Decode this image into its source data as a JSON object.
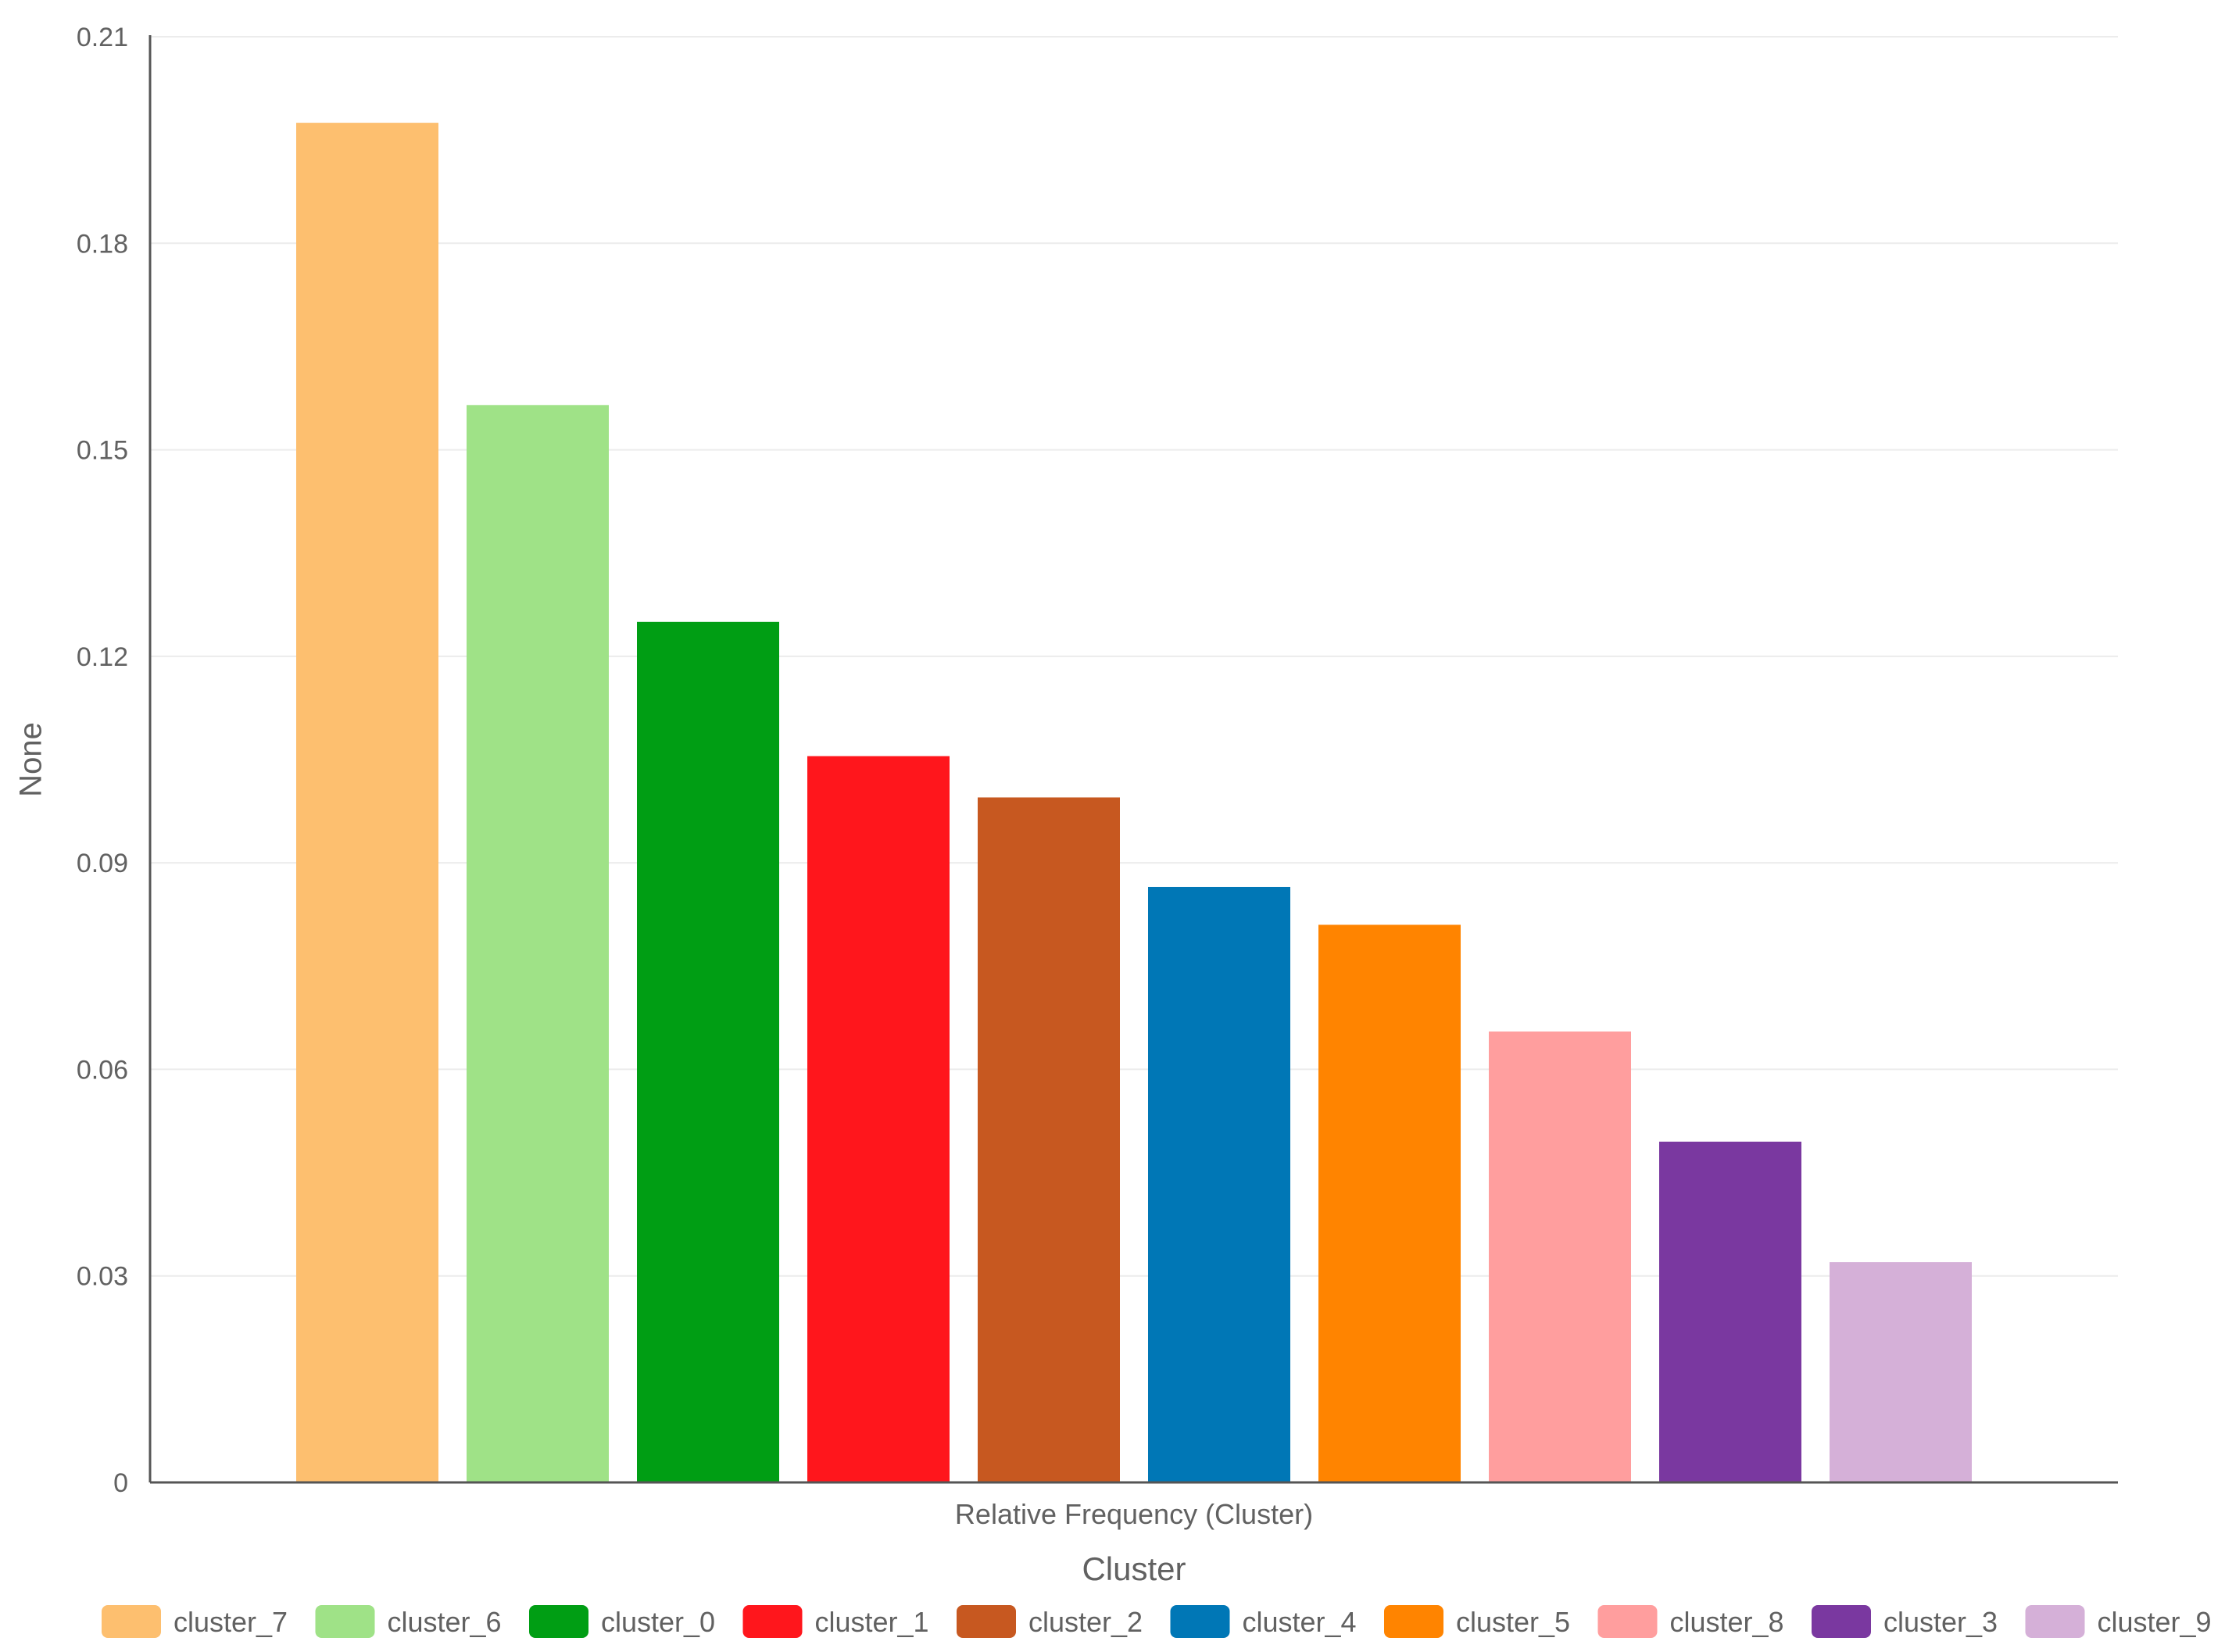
{
  "chart_data": {
    "type": "bar",
    "ylabel": "None",
    "xlabel": "Cluster",
    "x_category_label": "Relative Frequency (Cluster)",
    "ylim": [
      0,
      0.21
    ],
    "yticks": [
      "0",
      "0.03",
      "0.06",
      "0.09",
      "0.12",
      "0.15",
      "0.18",
      "0.21"
    ],
    "grid": true,
    "legend_position": "bottom",
    "categories": [
      "cluster_7",
      "cluster_6",
      "cluster_0",
      "cluster_1",
      "cluster_2",
      "cluster_4",
      "cluster_5",
      "cluster_8",
      "cluster_3",
      "cluster_9"
    ],
    "values": [
      0.1975,
      0.1565,
      0.125,
      0.1055,
      0.0995,
      0.0865,
      0.081,
      0.0655,
      0.0495,
      0.032
    ],
    "colors": [
      "#FDBF6F",
      "#9FE287",
      "#009E14",
      "#FF161C",
      "#C75820",
      "#0077B6",
      "#FF8400",
      "#FF9E9E",
      "#7A38A0",
      "#D5B0D8"
    ]
  }
}
